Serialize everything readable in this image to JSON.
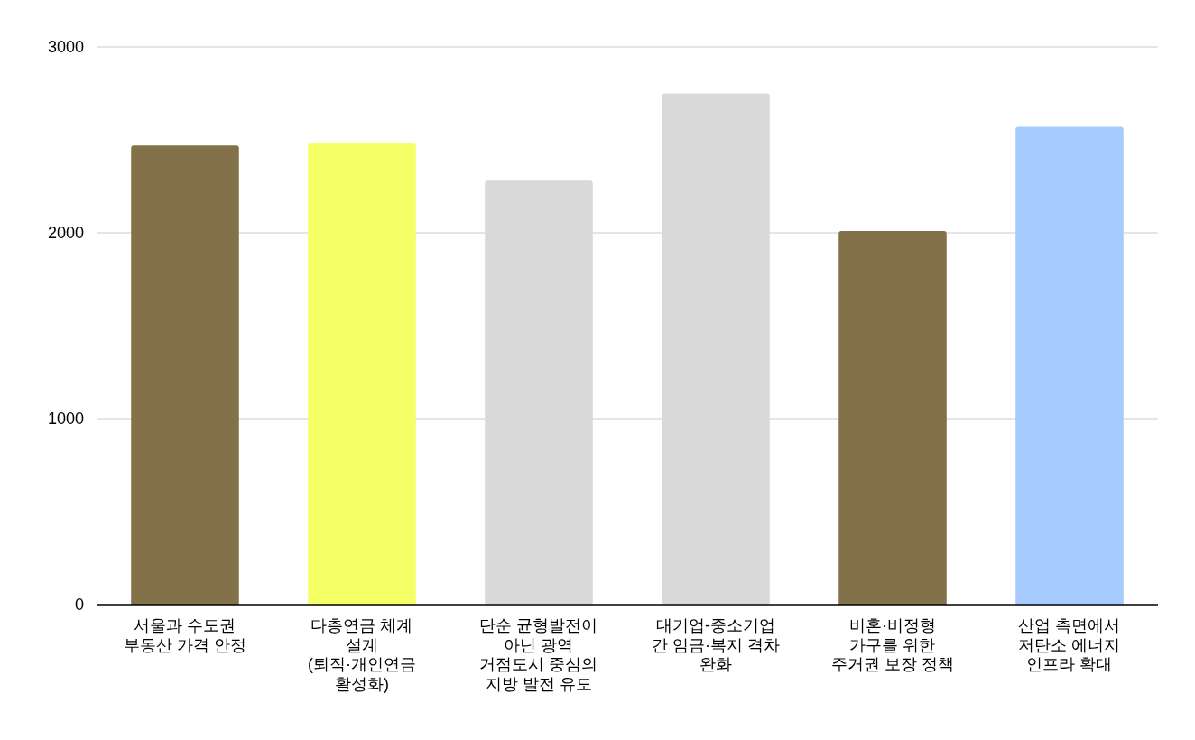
{
  "chart_data": {
    "type": "bar",
    "categories": [
      "서울과 수도권\n부동산 가격 안정",
      "다층연금 체계\n설계\n(퇴직·개인연금\n활성화)",
      "단순 균형발전이\n아닌 광역\n거점도시 중심의\n지방 발전 유도",
      "대기업-중소기업\n간 임금·복지 격차\n완화",
      "비혼·비정형\n가구를 위한\n주거권 보장 정책",
      "산업 측면에서\n저탄소 에너지\n인프라 확대"
    ],
    "values": [
      2470,
      2480,
      2280,
      2750,
      2010,
      2570
    ],
    "colors": [
      "#837249",
      "#f5ff66",
      "#d9d9d9",
      "#d9d9d9",
      "#837249",
      "#a8cbfe"
    ],
    "ylim": [
      0,
      3000
    ],
    "yticks": [
      0,
      1000,
      2000,
      3000
    ],
    "grid": "y"
  }
}
